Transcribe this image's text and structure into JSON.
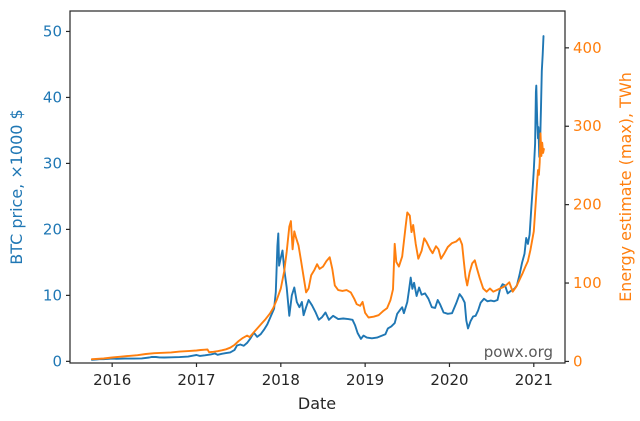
{
  "page": {
    "background": "#ffffff",
    "frame_color": "#262626",
    "tick_text_color": "#262626"
  },
  "chart_data": {
    "type": "line",
    "title": "",
    "xlabel": "Date",
    "watermark": "powx.org",
    "watermark_color": "#595959",
    "grid": false,
    "legend": "none",
    "x_axis": {
      "range": [
        2015.5,
        2021.37
      ],
      "ticks": [
        2016,
        2017,
        2018,
        2019,
        2020,
        2021
      ]
    },
    "y_left": {
      "label": "BTC price, ×1000 $",
      "color": "#1f77b4",
      "range": [
        -0.25,
        53.1
      ],
      "ticks": [
        0,
        10,
        20,
        30,
        40,
        50
      ]
    },
    "y_right": {
      "label": "Energy estimate (max), TWh",
      "color": "#ff7f0e",
      "range": [
        -2,
        447
      ],
      "ticks": [
        0,
        100,
        200,
        300,
        400
      ]
    },
    "series": [
      {
        "name": "btc-price",
        "label": "BTC price, ×1000 $",
        "axis": "left",
        "color": "#1f77b4",
        "points": [
          [
            2015.76,
            0.24
          ],
          [
            2015.82,
            0.29
          ],
          [
            2015.86,
            0.36
          ],
          [
            2015.9,
            0.33
          ],
          [
            2016.0,
            0.43
          ],
          [
            2016.05,
            0.38
          ],
          [
            2016.15,
            0.42
          ],
          [
            2016.25,
            0.42
          ],
          [
            2016.35,
            0.45
          ],
          [
            2016.44,
            0.58
          ],
          [
            2016.47,
            0.68
          ],
          [
            2016.52,
            0.66
          ],
          [
            2016.56,
            0.6
          ],
          [
            2016.62,
            0.59
          ],
          [
            2016.7,
            0.61
          ],
          [
            2016.8,
            0.64
          ],
          [
            2016.9,
            0.72
          ],
          [
            2016.97,
            0.9
          ],
          [
            2017.0,
            0.97
          ],
          [
            2017.04,
            0.82
          ],
          [
            2017.1,
            0.92
          ],
          [
            2017.17,
            1.05
          ],
          [
            2017.22,
            1.19
          ],
          [
            2017.25,
            1.0
          ],
          [
            2017.3,
            1.15
          ],
          [
            2017.35,
            1.25
          ],
          [
            2017.4,
            1.35
          ],
          [
            2017.45,
            1.7
          ],
          [
            2017.48,
            2.4
          ],
          [
            2017.52,
            2.55
          ],
          [
            2017.56,
            2.35
          ],
          [
            2017.6,
            2.8
          ],
          [
            2017.64,
            3.5
          ],
          [
            2017.68,
            4.35
          ],
          [
            2017.72,
            3.7
          ],
          [
            2017.76,
            4.1
          ],
          [
            2017.8,
            4.8
          ],
          [
            2017.84,
            5.6
          ],
          [
            2017.88,
            6.8
          ],
          [
            2017.92,
            8.0
          ],
          [
            2017.94,
            10.5
          ],
          [
            2017.96,
            17.5
          ],
          [
            2017.97,
            19.4
          ],
          [
            2017.98,
            14.5
          ],
          [
            2018.0,
            15.7
          ],
          [
            2018.02,
            16.8
          ],
          [
            2018.04,
            14.0
          ],
          [
            2018.07,
            11.2
          ],
          [
            2018.1,
            6.9
          ],
          [
            2018.13,
            10.0
          ],
          [
            2018.16,
            11.2
          ],
          [
            2018.19,
            9.0
          ],
          [
            2018.22,
            8.2
          ],
          [
            2018.25,
            9.0
          ],
          [
            2018.27,
            7.0
          ],
          [
            2018.3,
            8.2
          ],
          [
            2018.33,
            9.3
          ],
          [
            2018.37,
            8.5
          ],
          [
            2018.41,
            7.5
          ],
          [
            2018.45,
            6.3
          ],
          [
            2018.49,
            6.7
          ],
          [
            2018.53,
            7.4
          ],
          [
            2018.57,
            6.3
          ],
          [
            2018.62,
            6.9
          ],
          [
            2018.68,
            6.4
          ],
          [
            2018.74,
            6.5
          ],
          [
            2018.8,
            6.4
          ],
          [
            2018.85,
            6.3
          ],
          [
            2018.88,
            5.5
          ],
          [
            2018.91,
            4.3
          ],
          [
            2018.95,
            3.4
          ],
          [
            2018.98,
            3.9
          ],
          [
            2019.02,
            3.6
          ],
          [
            2019.08,
            3.5
          ],
          [
            2019.14,
            3.6
          ],
          [
            2019.2,
            3.9
          ],
          [
            2019.24,
            4.1
          ],
          [
            2019.27,
            5.0
          ],
          [
            2019.31,
            5.3
          ],
          [
            2019.35,
            5.8
          ],
          [
            2019.38,
            7.2
          ],
          [
            2019.42,
            7.9
          ],
          [
            2019.44,
            8.2
          ],
          [
            2019.46,
            7.3
          ],
          [
            2019.5,
            9.0
          ],
          [
            2019.52,
            10.8
          ],
          [
            2019.54,
            12.7
          ],
          [
            2019.56,
            11.0
          ],
          [
            2019.58,
            11.9
          ],
          [
            2019.61,
            9.9
          ],
          [
            2019.64,
            11.2
          ],
          [
            2019.67,
            10.1
          ],
          [
            2019.71,
            10.3
          ],
          [
            2019.75,
            9.5
          ],
          [
            2019.79,
            8.2
          ],
          [
            2019.83,
            8.1
          ],
          [
            2019.86,
            9.3
          ],
          [
            2019.89,
            8.6
          ],
          [
            2019.93,
            7.4
          ],
          [
            2019.98,
            7.2
          ],
          [
            2020.03,
            7.3
          ],
          [
            2020.08,
            8.8
          ],
          [
            2020.12,
            10.2
          ],
          [
            2020.15,
            9.7
          ],
          [
            2020.18,
            8.9
          ],
          [
            2020.2,
            6.2
          ],
          [
            2020.22,
            5.0
          ],
          [
            2020.25,
            6.1
          ],
          [
            2020.28,
            6.8
          ],
          [
            2020.31,
            6.9
          ],
          [
            2020.34,
            7.7
          ],
          [
            2020.37,
            8.9
          ],
          [
            2020.41,
            9.5
          ],
          [
            2020.45,
            9.1
          ],
          [
            2020.49,
            9.2
          ],
          [
            2020.53,
            9.1
          ],
          [
            2020.57,
            9.3
          ],
          [
            2020.6,
            11.0
          ],
          [
            2020.63,
            11.7
          ],
          [
            2020.66,
            11.5
          ],
          [
            2020.69,
            10.3
          ],
          [
            2020.73,
            10.7
          ],
          [
            2020.77,
            11.0
          ],
          [
            2020.8,
            11.5
          ],
          [
            2020.83,
            13.1
          ],
          [
            2020.86,
            14.9
          ],
          [
            2020.89,
            16.3
          ],
          [
            2020.91,
            18.7
          ],
          [
            2020.93,
            17.8
          ],
          [
            2020.95,
            19.2
          ],
          [
            2020.97,
            23.2
          ],
          [
            2020.99,
            27.0
          ],
          [
            2021.0,
            29.0
          ],
          [
            2021.015,
            33.0
          ],
          [
            2021.025,
            40.8
          ],
          [
            2021.03,
            41.8
          ],
          [
            2021.04,
            36.5
          ],
          [
            2021.05,
            33.8
          ],
          [
            2021.055,
            35.5
          ],
          [
            2021.065,
            31.0
          ],
          [
            2021.075,
            33.0
          ],
          [
            2021.085,
            38.5
          ],
          [
            2021.095,
            44.0
          ],
          [
            2021.105,
            46.5
          ],
          [
            2021.115,
            49.3
          ]
        ]
      },
      {
        "name": "energy-estimate-max",
        "label": "Energy estimate (max), TWh",
        "axis": "right",
        "color": "#ff7f0e",
        "points": [
          [
            2015.76,
            2.8
          ],
          [
            2015.9,
            3.8
          ],
          [
            2016.0,
            5
          ],
          [
            2016.1,
            6
          ],
          [
            2016.2,
            7
          ],
          [
            2016.3,
            8
          ],
          [
            2016.4,
            9.5
          ],
          [
            2016.5,
            10.5
          ],
          [
            2016.6,
            11
          ],
          [
            2016.7,
            11.5
          ],
          [
            2016.8,
            12.5
          ],
          [
            2016.9,
            13.2
          ],
          [
            2017.0,
            14
          ],
          [
            2017.05,
            14.6
          ],
          [
            2017.1,
            15
          ],
          [
            2017.13,
            15.2
          ],
          [
            2017.15,
            11.8
          ],
          [
            2017.2,
            12.3
          ],
          [
            2017.25,
            13
          ],
          [
            2017.3,
            14.2
          ],
          [
            2017.35,
            15.5
          ],
          [
            2017.4,
            17.5
          ],
          [
            2017.45,
            21
          ],
          [
            2017.5,
            26
          ],
          [
            2017.55,
            30
          ],
          [
            2017.6,
            33
          ],
          [
            2017.63,
            31
          ],
          [
            2017.67,
            36
          ],
          [
            2017.72,
            42
          ],
          [
            2017.77,
            48
          ],
          [
            2017.82,
            54
          ],
          [
            2017.87,
            61
          ],
          [
            2017.91,
            68
          ],
          [
            2017.95,
            78
          ],
          [
            2018.0,
            93
          ],
          [
            2018.04,
            115
          ],
          [
            2018.07,
            140
          ],
          [
            2018.1,
            172
          ],
          [
            2018.12,
            179
          ],
          [
            2018.14,
            143
          ],
          [
            2018.16,
            166
          ],
          [
            2018.18,
            158
          ],
          [
            2018.21,
            148
          ],
          [
            2018.24,
            128
          ],
          [
            2018.27,
            108
          ],
          [
            2018.3,
            88
          ],
          [
            2018.33,
            93
          ],
          [
            2018.36,
            110
          ],
          [
            2018.4,
            117
          ],
          [
            2018.43,
            124
          ],
          [
            2018.46,
            118
          ],
          [
            2018.5,
            121
          ],
          [
            2018.54,
            128
          ],
          [
            2018.58,
            133
          ],
          [
            2018.61,
            118
          ],
          [
            2018.64,
            97
          ],
          [
            2018.68,
            91
          ],
          [
            2018.73,
            90
          ],
          [
            2018.78,
            91
          ],
          [
            2018.83,
            88
          ],
          [
            2018.87,
            80
          ],
          [
            2018.9,
            73
          ],
          [
            2018.94,
            71
          ],
          [
            2018.97,
            76
          ],
          [
            2019.0,
            62
          ],
          [
            2019.04,
            56
          ],
          [
            2019.1,
            57
          ],
          [
            2019.16,
            59
          ],
          [
            2019.21,
            64
          ],
          [
            2019.26,
            68
          ],
          [
            2019.3,
            78
          ],
          [
            2019.33,
            92
          ],
          [
            2019.35,
            150
          ],
          [
            2019.37,
            127
          ],
          [
            2019.4,
            121
          ],
          [
            2019.44,
            134
          ],
          [
            2019.48,
            172
          ],
          [
            2019.5,
            190
          ],
          [
            2019.53,
            186
          ],
          [
            2019.55,
            165
          ],
          [
            2019.57,
            174
          ],
          [
            2019.6,
            150
          ],
          [
            2019.63,
            131
          ],
          [
            2019.67,
            141
          ],
          [
            2019.7,
            157
          ],
          [
            2019.73,
            152
          ],
          [
            2019.77,
            143
          ],
          [
            2019.8,
            138
          ],
          [
            2019.84,
            147
          ],
          [
            2019.87,
            143
          ],
          [
            2019.9,
            131
          ],
          [
            2019.94,
            138
          ],
          [
            2019.98,
            146
          ],
          [
            2020.03,
            151
          ],
          [
            2020.08,
            153
          ],
          [
            2020.12,
            157
          ],
          [
            2020.15,
            149
          ],
          [
            2020.17,
            128
          ],
          [
            2020.19,
            108
          ],
          [
            2020.21,
            97
          ],
          [
            2020.24,
            114
          ],
          [
            2020.27,
            125
          ],
          [
            2020.3,
            129
          ],
          [
            2020.33,
            117
          ],
          [
            2020.36,
            106
          ],
          [
            2020.4,
            93
          ],
          [
            2020.44,
            89
          ],
          [
            2020.48,
            93
          ],
          [
            2020.52,
            89
          ],
          [
            2020.56,
            91
          ],
          [
            2020.6,
            93
          ],
          [
            2020.64,
            95
          ],
          [
            2020.68,
            98
          ],
          [
            2020.71,
            101
          ],
          [
            2020.75,
            89
          ],
          [
            2020.79,
            95
          ],
          [
            2020.83,
            104
          ],
          [
            2020.87,
            113
          ],
          [
            2020.9,
            121
          ],
          [
            2020.93,
            128
          ],
          [
            2020.96,
            142
          ],
          [
            2021.0,
            166
          ],
          [
            2021.02,
            198
          ],
          [
            2021.04,
            230
          ],
          [
            2021.05,
            244
          ],
          [
            2021.06,
            238
          ],
          [
            2021.07,
            254
          ],
          [
            2021.08,
            291
          ],
          [
            2021.09,
            262
          ],
          [
            2021.1,
            279
          ],
          [
            2021.11,
            266
          ],
          [
            2021.12,
            271
          ]
        ]
      }
    ]
  }
}
